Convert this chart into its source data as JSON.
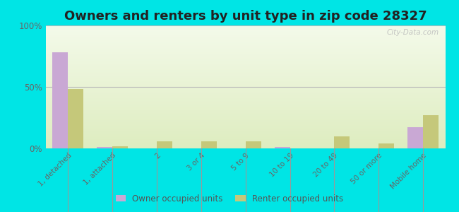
{
  "title": "Owners and renters by unit type in zip code 28327",
  "categories": [
    "1, detached",
    "1, attached",
    "2",
    "3 or 4",
    "5 to 9",
    "10 to 19",
    "20 to 49",
    "50 or more",
    "Mobile home"
  ],
  "owner_values": [
    78,
    1,
    0,
    0,
    0,
    1,
    0,
    0,
    17
  ],
  "renter_values": [
    48,
    2,
    6,
    6,
    6,
    0,
    10,
    4,
    27
  ],
  "owner_color": "#c9a8d4",
  "renter_color": "#c5c87a",
  "background_color": "#00e5e5",
  "title_fontsize": 13,
  "ylim": [
    0,
    100
  ],
  "yticks": [
    0,
    50,
    100
  ],
  "ytick_labels": [
    "0%",
    "50%",
    "100%"
  ],
  "legend_owner": "Owner occupied units",
  "legend_renter": "Renter occupied units",
  "watermark": "City-Data.com",
  "grad_top": "#f4faea",
  "grad_bottom": "#deedc0"
}
